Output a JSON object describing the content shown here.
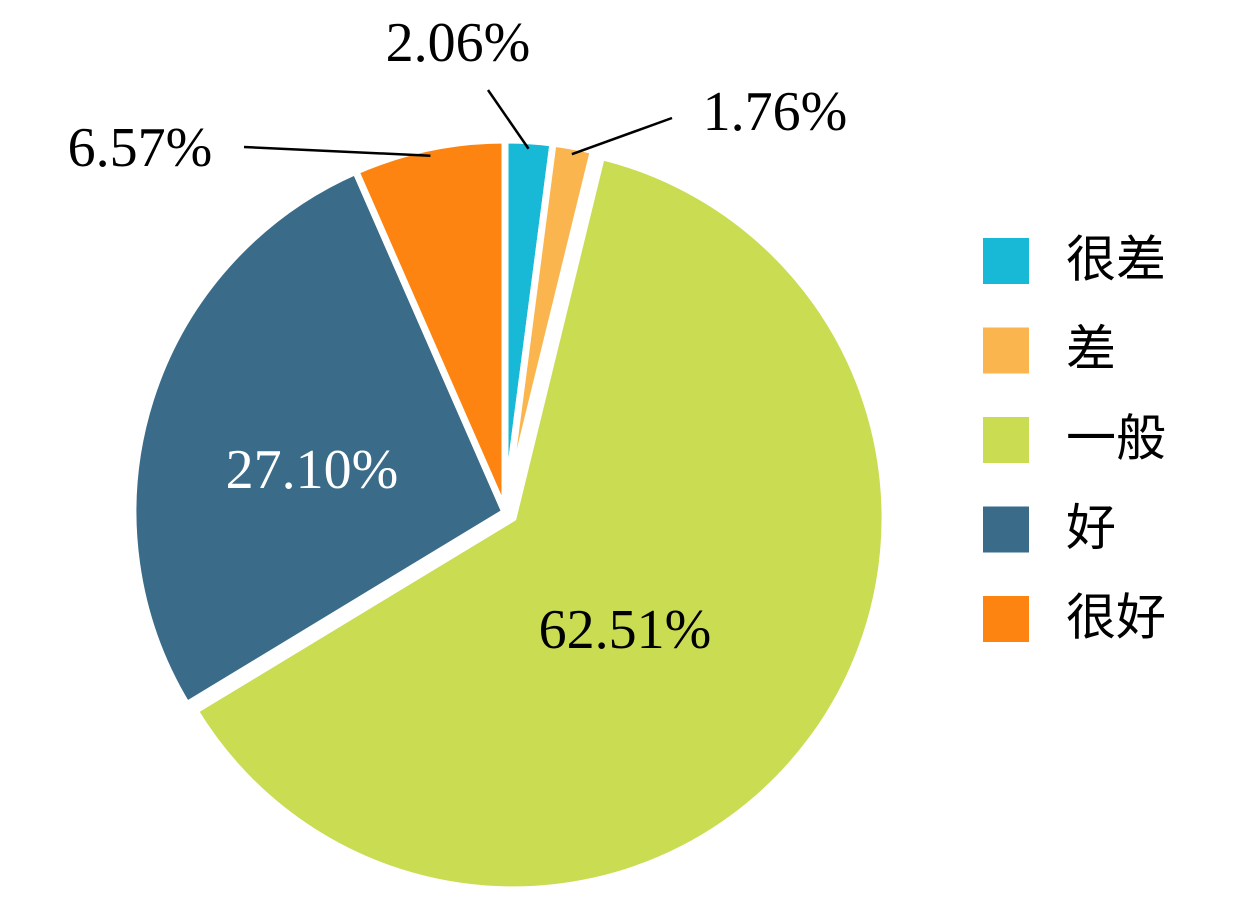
{
  "chart_data": {
    "type": "pie",
    "categories": [
      "很差",
      "差",
      "一般",
      "好",
      "很好"
    ],
    "values": [
      2.06,
      1.76,
      62.51,
      27.1,
      6.57
    ],
    "value_labels": [
      "2.06%",
      "1.76%",
      "62.51%",
      "27.10%",
      "6.57%"
    ],
    "colors": [
      "#17b9d6",
      "#fbb54e",
      "#c9dc52",
      "#3a6b89",
      "#fd8411"
    ],
    "legend": "right"
  }
}
